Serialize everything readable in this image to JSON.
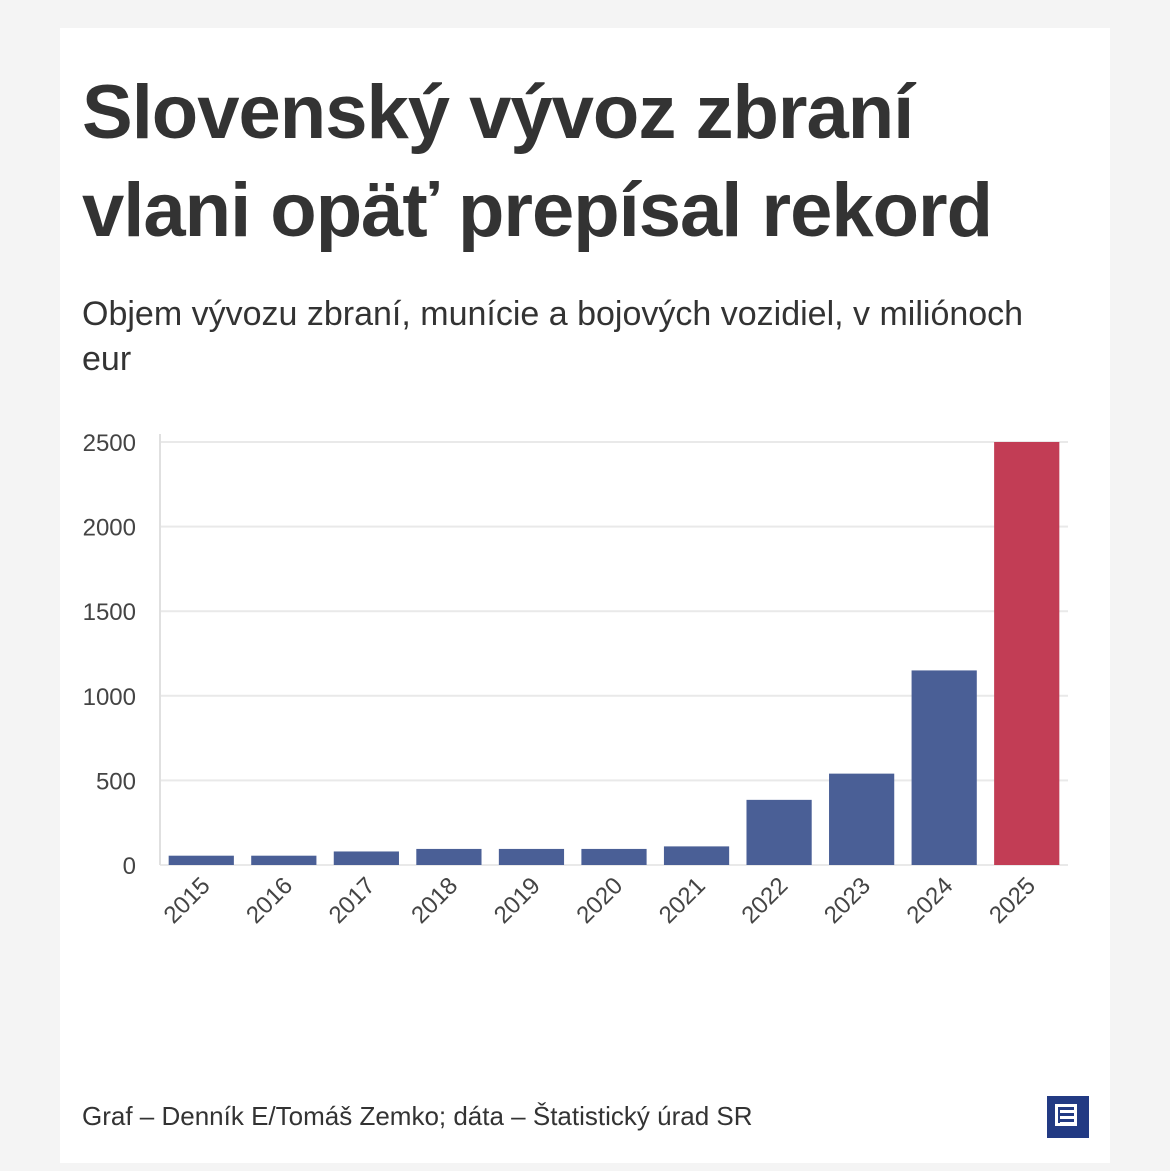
{
  "title": "Slovenský vývoz zbraní vlani opäť prepísal rekord",
  "subtitle": "Objem vývozu zbraní, munície a bojových vozidiel, v miliónoch eur",
  "credit": "Graf – Denník E/Tomáš Zemko; dáta – Štatistický úrad SR",
  "logo_icon": "denník-e-logo-icon",
  "colors": {
    "bar_default": "#4a5f96",
    "bar_highlight": "#c23d55",
    "logo": "#223a83"
  },
  "chart_data": {
    "type": "bar",
    "categories": [
      "2015",
      "2016",
      "2017",
      "2018",
      "2019",
      "2020",
      "2021",
      "2022",
      "2023",
      "2024",
      "2025"
    ],
    "values": [
      55,
      55,
      80,
      95,
      95,
      95,
      110,
      385,
      540,
      1150,
      2500
    ],
    "highlight": [
      "2025"
    ],
    "title": "",
    "xlabel": "",
    "ylabel": "",
    "ylim": [
      0,
      2500
    ],
    "yticks": [
      0,
      500,
      1000,
      1500,
      2000,
      2500
    ],
    "grid": true,
    "legend": "none"
  }
}
